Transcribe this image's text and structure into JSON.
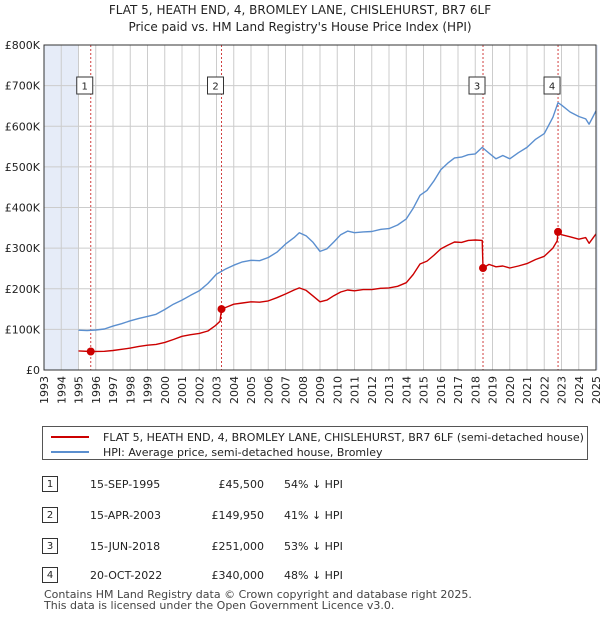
{
  "title": {
    "line1": "FLAT 5, HEATH END, 4, BROMLEY LANE, CHISLEHURST, BR7 6LF",
    "line2": "Price paid vs. HM Land Registry's House Price Index (HPI)"
  },
  "colors": {
    "price_line": "#cc0000",
    "hpi_line": "#5b8fcf",
    "band_fill": "#e6ecf8",
    "grid": "#cccccc",
    "marker_line": "#d04040"
  },
  "chart_data": {
    "type": "line",
    "xlim": [
      1993,
      2025
    ],
    "ylim": [
      0,
      800000
    ],
    "x_ticks": [
      "1993",
      "1994",
      "1995",
      "1996",
      "1997",
      "1998",
      "1999",
      "2000",
      "2001",
      "2002",
      "2003",
      "2004",
      "2005",
      "2006",
      "2007",
      "2008",
      "2009",
      "2010",
      "2011",
      "2012",
      "2013",
      "2014",
      "2015",
      "2016",
      "2017",
      "2018",
      "2019",
      "2020",
      "2021",
      "2022",
      "2023",
      "2024",
      "2025"
    ],
    "y_ticks": [
      {
        "value": 0,
        "label": "£0"
      },
      {
        "value": 100000,
        "label": "£100K"
      },
      {
        "value": 200000,
        "label": "£200K"
      },
      {
        "value": 300000,
        "label": "£300K"
      },
      {
        "value": 400000,
        "label": "£400K"
      },
      {
        "value": 500000,
        "label": "£500K"
      },
      {
        "value": 600000,
        "label": "£600K"
      },
      {
        "value": 700000,
        "label": "£700K"
      },
      {
        "value": 800000,
        "label": "£800K"
      }
    ],
    "shaded_ranges": [
      [
        1993,
        1995
      ],
      [
        2025,
        2025.5
      ]
    ],
    "series": [
      {
        "name": "FLAT 5, HEATH END, 4, BROMLEY LANE, CHISLEHURST, BR7 6LF (semi-detached house)",
        "color": "#cc0000",
        "points": [
          [
            1995.0,
            47000
          ],
          [
            1995.71,
            45500
          ],
          [
            1996.5,
            46000
          ],
          [
            1997.0,
            48000
          ],
          [
            1997.5,
            51000
          ],
          [
            1998.0,
            54000
          ],
          [
            1998.5,
            58000
          ],
          [
            1999.0,
            61000
          ],
          [
            1999.5,
            63000
          ],
          [
            2000.0,
            68000
          ],
          [
            2000.5,
            75000
          ],
          [
            2001.0,
            83000
          ],
          [
            2001.5,
            87000
          ],
          [
            2002.0,
            90000
          ],
          [
            2002.5,
            96000
          ],
          [
            2002.9,
            108000
          ],
          [
            2003.2,
            120000
          ],
          [
            2003.29,
            149950
          ],
          [
            2003.6,
            155000
          ],
          [
            2004.0,
            162000
          ],
          [
            2004.5,
            165000
          ],
          [
            2005.0,
            168000
          ],
          [
            2005.5,
            167000
          ],
          [
            2006.0,
            170000
          ],
          [
            2006.5,
            178000
          ],
          [
            2007.0,
            187000
          ],
          [
            2007.5,
            197000
          ],
          [
            2007.8,
            202000
          ],
          [
            2008.2,
            196000
          ],
          [
            2008.6,
            182000
          ],
          [
            2009.0,
            168000
          ],
          [
            2009.4,
            172000
          ],
          [
            2009.8,
            183000
          ],
          [
            2010.2,
            192000
          ],
          [
            2010.6,
            197000
          ],
          [
            2011.0,
            195000
          ],
          [
            2011.5,
            198000
          ],
          [
            2012.0,
            198000
          ],
          [
            2012.5,
            201000
          ],
          [
            2013.0,
            202000
          ],
          [
            2013.5,
            206000
          ],
          [
            2014.0,
            215000
          ],
          [
            2014.4,
            235000
          ],
          [
            2014.8,
            261000
          ],
          [
            2015.2,
            268000
          ],
          [
            2015.6,
            282000
          ],
          [
            2016.0,
            298000
          ],
          [
            2016.4,
            307000
          ],
          [
            2016.8,
            315000
          ],
          [
            2017.2,
            314000
          ],
          [
            2017.6,
            319000
          ],
          [
            2018.0,
            320000
          ],
          [
            2018.4,
            319000
          ],
          [
            2018.45,
            251000
          ],
          [
            2018.8,
            260000
          ],
          [
            2019.2,
            254000
          ],
          [
            2019.6,
            256000
          ],
          [
            2020.0,
            251000
          ],
          [
            2020.5,
            256000
          ],
          [
            2021.0,
            262000
          ],
          [
            2021.5,
            272000
          ],
          [
            2022.0,
            280000
          ],
          [
            2022.5,
            300000
          ],
          [
            2022.75,
            318000
          ],
          [
            2022.8,
            340000
          ],
          [
            2023.0,
            333000
          ],
          [
            2023.5,
            328000
          ],
          [
            2024.0,
            322000
          ],
          [
            2024.4,
            326000
          ],
          [
            2024.6,
            312000
          ],
          [
            2025.0,
            335000
          ]
        ]
      },
      {
        "name": "HPI: Average price, semi-detached house, Bromley",
        "color": "#5b8fcf",
        "points": [
          [
            1995.0,
            98000
          ],
          [
            1995.5,
            97000
          ],
          [
            1996.0,
            98500
          ],
          [
            1996.5,
            101000
          ],
          [
            1997.0,
            108000
          ],
          [
            1997.5,
            114000
          ],
          [
            1998.0,
            121000
          ],
          [
            1998.5,
            127000
          ],
          [
            1999.0,
            132000
          ],
          [
            1999.5,
            137000
          ],
          [
            2000.0,
            149000
          ],
          [
            2000.5,
            162000
          ],
          [
            2001.0,
            172000
          ],
          [
            2001.5,
            184000
          ],
          [
            2002.0,
            195000
          ],
          [
            2002.5,
            213000
          ],
          [
            2003.0,
            236000
          ],
          [
            2003.5,
            248000
          ],
          [
            2004.0,
            258000
          ],
          [
            2004.5,
            266000
          ],
          [
            2005.0,
            270000
          ],
          [
            2005.5,
            269000
          ],
          [
            2006.0,
            277000
          ],
          [
            2006.5,
            290000
          ],
          [
            2007.0,
            310000
          ],
          [
            2007.5,
            326000
          ],
          [
            2007.8,
            338000
          ],
          [
            2008.2,
            330000
          ],
          [
            2008.6,
            314000
          ],
          [
            2009.0,
            292000
          ],
          [
            2009.4,
            298000
          ],
          [
            2009.8,
            315000
          ],
          [
            2010.2,
            333000
          ],
          [
            2010.6,
            342000
          ],
          [
            2011.0,
            338000
          ],
          [
            2011.5,
            340000
          ],
          [
            2012.0,
            341000
          ],
          [
            2012.5,
            346000
          ],
          [
            2013.0,
            348000
          ],
          [
            2013.5,
            357000
          ],
          [
            2014.0,
            372000
          ],
          [
            2014.4,
            398000
          ],
          [
            2014.8,
            430000
          ],
          [
            2015.2,
            442000
          ],
          [
            2015.6,
            465000
          ],
          [
            2016.0,
            493000
          ],
          [
            2016.4,
            509000
          ],
          [
            2016.8,
            522000
          ],
          [
            2017.2,
            524000
          ],
          [
            2017.6,
            530000
          ],
          [
            2018.0,
            532000
          ],
          [
            2018.4,
            548000
          ],
          [
            2018.8,
            534000
          ],
          [
            2019.2,
            520000
          ],
          [
            2019.6,
            528000
          ],
          [
            2020.0,
            520000
          ],
          [
            2020.5,
            535000
          ],
          [
            2021.0,
            548000
          ],
          [
            2021.5,
            568000
          ],
          [
            2022.0,
            582000
          ],
          [
            2022.5,
            622000
          ],
          [
            2022.8,
            658000
          ],
          [
            2023.0,
            652000
          ],
          [
            2023.5,
            635000
          ],
          [
            2024.0,
            624000
          ],
          [
            2024.4,
            618000
          ],
          [
            2024.6,
            605000
          ],
          [
            2025.0,
            638000
          ]
        ]
      }
    ],
    "sales": [
      {
        "num": "1",
        "x": 1995.71,
        "price": 45500
      },
      {
        "num": "2",
        "x": 2003.29,
        "price": 149950
      },
      {
        "num": "3",
        "x": 2018.45,
        "price": 251000
      },
      {
        "num": "4",
        "x": 2022.8,
        "price": 340000
      }
    ]
  },
  "legend": {
    "price_label": "FLAT 5, HEATH END, 4, BROMLEY LANE, CHISLEHURST, BR7 6LF (semi-detached house)",
    "hpi_label": "HPI: Average price, semi-detached house, Bromley"
  },
  "sales_table": [
    {
      "num": "1",
      "date": "15-SEP-1995",
      "price": "£45,500",
      "delta": "54% ↓ HPI"
    },
    {
      "num": "2",
      "date": "15-APR-2003",
      "price": "£149,950",
      "delta": "41% ↓ HPI"
    },
    {
      "num": "3",
      "date": "15-JUN-2018",
      "price": "£251,000",
      "delta": "53% ↓ HPI"
    },
    {
      "num": "4",
      "date": "20-OCT-2022",
      "price": "£340,000",
      "delta": "48% ↓ HPI"
    }
  ],
  "footer": {
    "line1": "Contains HM Land Registry data © Crown copyright and database right 2025.",
    "line2": "This data is licensed under the Open Government Licence v3.0."
  }
}
